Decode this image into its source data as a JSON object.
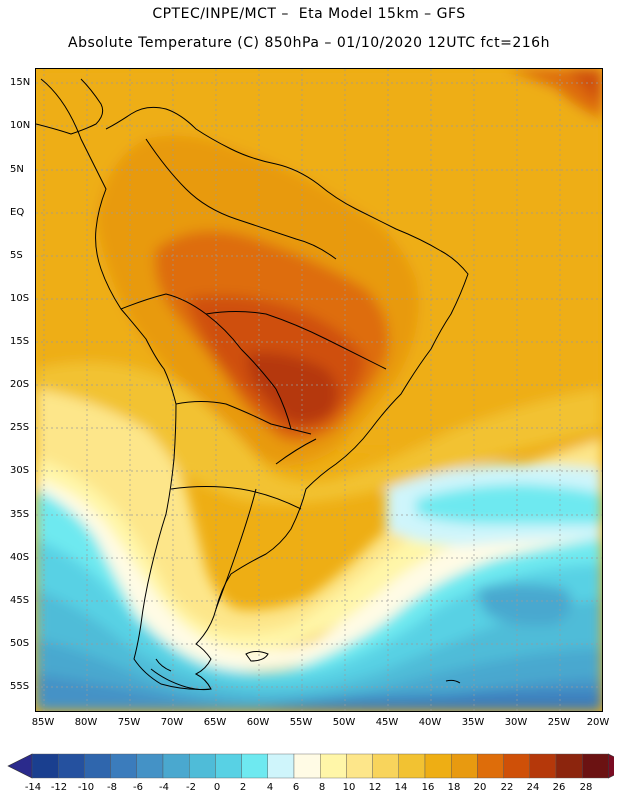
{
  "title_line1": "CPTEC/INPE/MCT –  Eta Model 15km – GFS",
  "title_line2": "Absolute Temperature (C) 850hPa – 01/10/2020 12UTC fct=216h",
  "lat_labels": [
    "15N",
    "10N",
    "5N",
    "EQ",
    "5S",
    "10S",
    "15S",
    "20S",
    "25S",
    "30S",
    "35S",
    "40S",
    "45S",
    "50S",
    "55S"
  ],
  "lon_labels": [
    "85W",
    "80W",
    "75W",
    "70W",
    "65W",
    "60W",
    "55W",
    "50W",
    "45W",
    "40W",
    "35W",
    "30W",
    "25W",
    "20W"
  ],
  "colorbar": {
    "labels": [
      "-14",
      "-12",
      "-10",
      "-8",
      "-6",
      "-4",
      "-2",
      "0",
      "2",
      "4",
      "6",
      "8",
      "10",
      "12",
      "14",
      "16",
      "18",
      "20",
      "22",
      "24",
      "26",
      "28"
    ],
    "colors": [
      "#1a3f8f",
      "#25519f",
      "#2f66ad",
      "#3b7cbc",
      "#4492c6",
      "#4aa8cf",
      "#4fbcd8",
      "#58d1e4",
      "#6ee9f0",
      "#cff5fb",
      "#fffbe5",
      "#fff6a8",
      "#fde68a",
      "#f8d45c",
      "#f2c232",
      "#eeae14",
      "#e89a10",
      "#de6d0a",
      "#cf5008",
      "#b5380a",
      "#8c250d",
      "#6b1212"
    ],
    "under_color": "#2a2a8c",
    "over_color": "#7a0b22"
  },
  "colors": {
    "frame": "#000000",
    "coast": "#000000",
    "grid": "#9a9a9a"
  }
}
